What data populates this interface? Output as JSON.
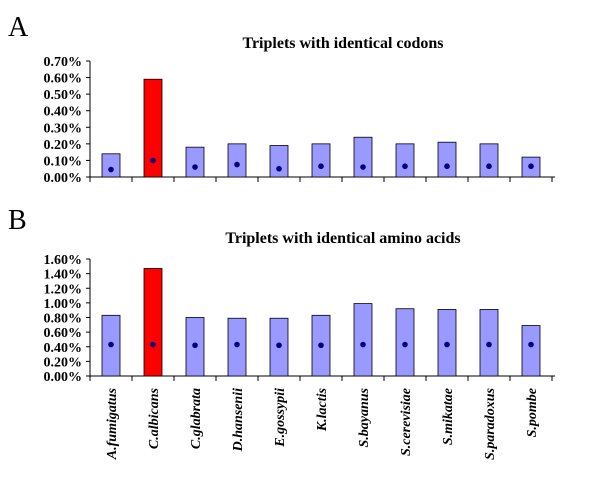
{
  "chart_data": [
    {
      "panel": "A",
      "type": "bar",
      "title": "Triplets with identical codons",
      "categories": [
        "A.fumigatus",
        "C.albicans",
        "C.glabrata",
        "D.hansenii",
        "E.gossypii",
        "K.lactis",
        "S.bayanus",
        "S.cerevisiae",
        "S.mikatae",
        "S.paradoxus",
        "S.pombe"
      ],
      "series": [
        {
          "values": [
            0.14,
            0.59,
            0.18,
            0.2,
            0.19,
            0.2,
            0.24,
            0.2,
            0.21,
            0.2,
            0.12
          ]
        },
        {
          "values": [
            0.045,
            0.1,
            0.06,
            0.075,
            0.05,
            0.065,
            0.06,
            0.065,
            0.065,
            0.065,
            0.065
          ]
        }
      ],
      "highlight_index": 1,
      "ylim": [
        0,
        0.7
      ],
      "yticks": [
        "0.00%",
        "0.10%",
        "0.20%",
        "0.30%",
        "0.40%",
        "0.50%",
        "0.60%",
        "0.70%"
      ],
      "colors": {
        "bar": "#9999ff",
        "highlight": "#ff0000",
        "marker": "#000080"
      },
      "grid": false
    },
    {
      "panel": "B",
      "type": "bar",
      "title": "Triplets with identical amino acids",
      "categories": [
        "A.fumigatus",
        "C.albicans",
        "C.glabrata",
        "D.hansenii",
        "E.gossypii",
        "K.lactis",
        "S.bayanus",
        "S.cerevisiae",
        "S.mikatae",
        "S.paradoxus",
        "S.pombe"
      ],
      "series": [
        {
          "values": [
            0.83,
            1.47,
            0.8,
            0.79,
            0.79,
            0.83,
            0.99,
            0.92,
            0.91,
            0.91,
            0.69
          ]
        },
        {
          "values": [
            0.43,
            0.43,
            0.42,
            0.43,
            0.42,
            0.42,
            0.43,
            0.43,
            0.43,
            0.43,
            0.43
          ]
        }
      ],
      "highlight_index": 1,
      "ylim": [
        0,
        1.6
      ],
      "yticks": [
        "0.00%",
        "0.20%",
        "0.40%",
        "0.60%",
        "0.80%",
        "1.00%",
        "1.20%",
        "1.40%",
        "1.60%"
      ],
      "colors": {
        "bar": "#9999ff",
        "highlight": "#ff0000",
        "marker": "#000080"
      },
      "grid": false
    }
  ]
}
